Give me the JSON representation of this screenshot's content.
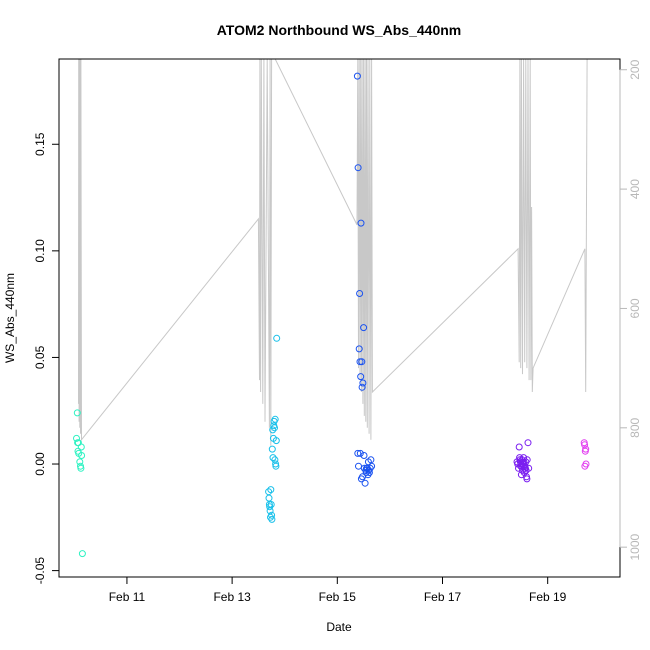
{
  "chart_data": {
    "type": "scatter",
    "title": "ATOM2 Northbound WS_Abs_440nm",
    "xlabel": "Date",
    "ylabel": "WS_Abs_440nm",
    "xlim": [
      "2017-02-09T17:00",
      "2017-02-20T09:00"
    ],
    "ylim": [
      -0.053,
      0.19
    ],
    "x_ticks": [
      {
        "date": "2017-02-11",
        "label": "Feb 11"
      },
      {
        "date": "2017-02-13",
        "label": "Feb 13"
      },
      {
        "date": "2017-02-15",
        "label": "Feb 15"
      },
      {
        "date": "2017-02-17",
        "label": "Feb 17"
      },
      {
        "date": "2017-02-19",
        "label": "Feb 19"
      }
    ],
    "y_ticks": [
      -0.05,
      0.0,
      0.05,
      0.1,
      0.15
    ],
    "y_tick_labels": [
      "-0.05",
      "0.00",
      "0.05",
      "0.10",
      "0.15"
    ],
    "secondary_axis": {
      "side": "right",
      "reversed": true,
      "range": [
        182,
        1050
      ],
      "ticks": [
        200,
        400,
        600,
        800,
        1000
      ],
      "tick_labels": [
        "200",
        "400",
        "600",
        "800",
        "1000"
      ],
      "color": "#b8b8b8"
    },
    "altitude_series": {
      "color": "#c8c8c8",
      "points": [
        [
          "2017-02-10T01:55",
          760
        ],
        [
          "2017-02-10T02:00",
          182
        ],
        [
          "2017-02-10T02:10",
          790
        ],
        [
          "2017-02-10T02:20",
          182
        ],
        [
          "2017-02-10T02:30",
          800
        ],
        [
          "2017-02-10T02:40",
          182
        ],
        [
          "2017-02-10T02:50",
          810
        ],
        [
          "2017-02-10T03:00",
          182
        ],
        [
          "2017-02-10T03:15",
          820
        ],
        [
          "2017-02-13T12:00",
          450
        ],
        [
          "2017-02-13T12:30",
          720
        ],
        [
          "2017-02-13T12:40",
          182
        ],
        [
          "2017-02-13T13:00",
          740
        ],
        [
          "2017-02-13T13:20",
          182
        ],
        [
          "2017-02-13T14:00",
          760
        ],
        [
          "2017-02-13T14:30",
          182
        ],
        [
          "2017-02-13T15:00",
          790
        ],
        [
          "2017-02-13T16:00",
          182
        ],
        [
          "2017-02-13T17:00",
          800
        ],
        [
          "2017-02-13T17:20",
          182
        ],
        [
          "2017-02-13T17:40",
          830
        ],
        [
          "2017-02-13T18:00",
          182
        ],
        [
          "2017-02-13T19:40",
          182
        ],
        [
          "2017-02-15T09:00",
          460
        ],
        [
          "2017-02-15T09:20",
          182
        ],
        [
          "2017-02-15T09:40",
          700
        ],
        [
          "2017-02-15T10:00",
          182
        ],
        [
          "2017-02-15T10:20",
          720
        ],
        [
          "2017-02-15T10:40",
          182
        ],
        [
          "2017-02-15T11:00",
          740
        ],
        [
          "2017-02-15T11:20",
          182
        ],
        [
          "2017-02-15T11:40",
          760
        ],
        [
          "2017-02-15T12:00",
          182
        ],
        [
          "2017-02-15T12:20",
          780
        ],
        [
          "2017-02-15T12:40",
          182
        ],
        [
          "2017-02-15T13:00",
          790
        ],
        [
          "2017-02-15T13:20",
          182
        ],
        [
          "2017-02-15T13:40",
          800
        ],
        [
          "2017-02-15T14:00",
          182
        ],
        [
          "2017-02-15T14:30",
          810
        ],
        [
          "2017-02-15T14:50",
          182
        ],
        [
          "2017-02-15T15:20",
          820
        ],
        [
          "2017-02-15T15:40",
          182
        ],
        [
          "2017-02-15T16:00",
          740
        ],
        [
          "2017-02-18T10:30",
          500
        ],
        [
          "2017-02-18T11:00",
          690
        ],
        [
          "2017-02-18T11:20",
          182
        ],
        [
          "2017-02-18T11:40",
          700
        ],
        [
          "2017-02-18T12:00",
          182
        ],
        [
          "2017-02-18T12:30",
          710
        ],
        [
          "2017-02-18T13:00",
          182
        ],
        [
          "2017-02-18T13:30",
          690
        ],
        [
          "2017-02-18T14:00",
          182
        ],
        [
          "2017-02-18T14:30",
          700
        ],
        [
          "2017-02-18T15:00",
          182
        ],
        [
          "2017-02-18T15:30",
          720
        ],
        [
          "2017-02-18T16:00",
          182
        ],
        [
          "2017-02-18T16:20",
          720
        ],
        [
          "2017-02-18T16:40",
          430
        ],
        [
          "2017-02-18T17:00",
          740
        ],
        [
          "2017-02-18T17:20",
          700
        ],
        [
          "2017-02-19T17:00",
          500
        ],
        [
          "2017-02-19T17:20",
          740
        ],
        [
          "2017-02-19T18:00",
          182
        ]
      ]
    },
    "series": [
      {
        "color": "#2ef2c2",
        "points": [
          [
            "2017-02-10T01:00",
            0.012
          ],
          [
            "2017-02-10T01:20",
            0.024
          ],
          [
            "2017-02-10T01:30",
            0.01
          ],
          [
            "2017-02-10T01:40",
            0.006
          ],
          [
            "2017-02-10T02:00",
            0.005
          ],
          [
            "2017-02-10T02:30",
            0.001
          ],
          [
            "2017-02-10T02:50",
            -0.001
          ],
          [
            "2017-02-10T03:00",
            -0.002
          ],
          [
            "2017-02-10T03:10",
            0.008
          ],
          [
            "2017-02-10T03:20",
            0.004
          ],
          [
            "2017-02-10T03:40",
            -0.042
          ],
          [
            "2017-02-10T01:50",
            0.01
          ]
        ]
      },
      {
        "color": "#18c0ea",
        "points": [
          [
            "2017-02-13T16:40",
            -0.013
          ],
          [
            "2017-02-13T16:50",
            -0.016
          ],
          [
            "2017-02-13T17:00",
            -0.019
          ],
          [
            "2017-02-13T17:10",
            -0.02
          ],
          [
            "2017-02-13T17:20",
            -0.022
          ],
          [
            "2017-02-13T17:30",
            -0.025
          ],
          [
            "2017-02-13T17:40",
            -0.012
          ],
          [
            "2017-02-13T17:50",
            -0.019
          ],
          [
            "2017-02-13T18:00",
            -0.024
          ],
          [
            "2017-02-13T18:10",
            -0.026
          ],
          [
            "2017-02-13T18:20",
            0.007
          ],
          [
            "2017-02-13T18:30",
            0.016
          ],
          [
            "2017-02-13T18:40",
            0.003
          ],
          [
            "2017-02-13T18:50",
            0.012
          ],
          [
            "2017-02-13T19:00",
            0.018
          ],
          [
            "2017-02-13T19:10",
            0.02
          ],
          [
            "2017-02-13T19:20",
            0.017
          ],
          [
            "2017-02-13T19:30",
            0.002
          ],
          [
            "2017-02-13T19:40",
            0.021
          ],
          [
            "2017-02-13T19:50",
            0.0
          ],
          [
            "2017-02-13T20:00",
            -0.001
          ],
          [
            "2017-02-13T20:10",
            0.011
          ],
          [
            "2017-02-13T20:20",
            0.059
          ]
        ]
      },
      {
        "color": "#1a52f0",
        "points": [
          [
            "2017-02-15T09:10",
            0.182
          ],
          [
            "2017-02-15T09:20",
            0.005
          ],
          [
            "2017-02-15T09:30",
            0.139
          ],
          [
            "2017-02-15T09:40",
            -0.001
          ],
          [
            "2017-02-15T10:00",
            0.054
          ],
          [
            "2017-02-15T10:10",
            0.08
          ],
          [
            "2017-02-15T10:20",
            0.048
          ],
          [
            "2017-02-15T10:30",
            0.005
          ],
          [
            "2017-02-15T10:40",
            0.041
          ],
          [
            "2017-02-15T10:50",
            0.113
          ],
          [
            "2017-02-15T11:00",
            -0.007
          ],
          [
            "2017-02-15T11:10",
            0.048
          ],
          [
            "2017-02-15T11:20",
            0.036
          ],
          [
            "2017-02-15T11:30",
            -0.006
          ],
          [
            "2017-02-15T11:40",
            0.038
          ],
          [
            "2017-02-15T12:00",
            0.064
          ],
          [
            "2017-02-15T12:10",
            0.004
          ],
          [
            "2017-02-15T12:20",
            -0.002
          ],
          [
            "2017-02-15T12:40",
            -0.009
          ],
          [
            "2017-02-15T13:00",
            -0.003
          ],
          [
            "2017-02-15T13:10",
            -0.004
          ],
          [
            "2017-02-15T13:20",
            -0.002
          ],
          [
            "2017-02-15T13:40",
            -0.002
          ],
          [
            "2017-02-15T14:00",
            -0.005
          ],
          [
            "2017-02-15T14:10",
            0.001
          ],
          [
            "2017-02-15T14:20",
            -0.003
          ],
          [
            "2017-02-15T14:40",
            -0.004
          ],
          [
            "2017-02-15T15:00",
            -0.002
          ],
          [
            "2017-02-15T15:20",
            0.002
          ],
          [
            "2017-02-15T15:40",
            -0.001
          ]
        ]
      },
      {
        "color": "#7a1ef0",
        "points": [
          [
            "2017-02-18T10:00",
            0.001
          ],
          [
            "2017-02-18T10:20",
            0.0
          ],
          [
            "2017-02-18T10:40",
            -0.002
          ],
          [
            "2017-02-18T11:00",
            0.008
          ],
          [
            "2017-02-18T11:10",
            0.003
          ],
          [
            "2017-02-18T11:20",
            0.002
          ],
          [
            "2017-02-18T11:30",
            0.001
          ],
          [
            "2017-02-18T11:40",
            -0.001
          ],
          [
            "2017-02-18T11:50",
            0.0
          ],
          [
            "2017-02-18T12:00",
            -0.005
          ],
          [
            "2017-02-18T12:10",
            -0.001
          ],
          [
            "2017-02-18T12:20",
            0.002
          ],
          [
            "2017-02-18T12:30",
            -0.003
          ],
          [
            "2017-02-18T12:40",
            0.001
          ],
          [
            "2017-02-18T12:50",
            0.0
          ],
          [
            "2017-02-18T13:00",
            0.003
          ],
          [
            "2017-02-18T13:10",
            0.001
          ],
          [
            "2017-02-18T13:20",
            -0.004
          ],
          [
            "2017-02-18T13:30",
            -0.002
          ],
          [
            "2017-02-18T13:40",
            -0.001
          ],
          [
            "2017-02-18T13:50",
            -0.002
          ],
          [
            "2017-02-18T14:00",
            0.001
          ],
          [
            "2017-02-18T14:10",
            -0.003
          ],
          [
            "2017-02-18T14:20",
            -0.006
          ],
          [
            "2017-02-18T14:30",
            -0.007
          ],
          [
            "2017-02-18T14:40",
            0.002
          ],
          [
            "2017-02-18T15:00",
            0.01
          ],
          [
            "2017-02-18T15:20",
            -0.002
          ]
        ]
      },
      {
        "color": "#e23cf0",
        "points": [
          [
            "2017-02-19T16:40",
            0.01
          ],
          [
            "2017-02-19T16:50",
            0.009
          ],
          [
            "2017-02-19T17:00",
            -0.001
          ],
          [
            "2017-02-19T17:10",
            0.006
          ],
          [
            "2017-02-19T17:20",
            0.007
          ],
          [
            "2017-02-19T17:30",
            0.0
          ]
        ]
      }
    ]
  }
}
